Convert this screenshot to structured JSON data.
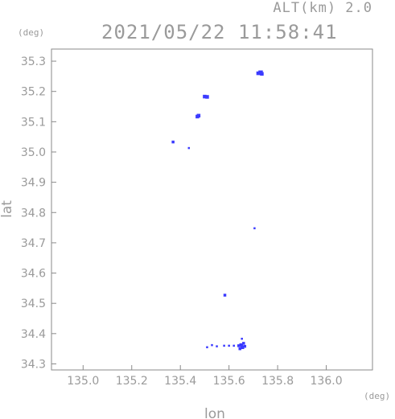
{
  "header": {
    "altitude_label": "ALT(km) 2.0",
    "timestamp": "2021/05/22 11:58:41"
  },
  "chart_data": {
    "type": "scatter",
    "title": "",
    "xlabel": "lon",
    "ylabel": "lat",
    "xunit": "(deg)",
    "yunit": "(deg)",
    "xlim": [
      134.87,
      136.19
    ],
    "ylim": [
      34.28,
      35.34
    ],
    "xticks": [
      "135.0",
      "135.2",
      "135.4",
      "135.6",
      "135.8",
      "136.0"
    ],
    "yticks": [
      "34.3",
      "34.4",
      "34.5",
      "34.6",
      "34.7",
      "34.8",
      "34.9",
      "35.0",
      "35.1",
      "35.2",
      "35.3"
    ],
    "grid": false,
    "point_color": "#3b3bff",
    "frame_color": "#8a8a8a",
    "series": [
      {
        "points": [
          {
            "x": 135.73,
            "y": 35.262,
            "size": 4
          },
          {
            "x": 135.72,
            "y": 35.26,
            "size": 3
          },
          {
            "x": 135.735,
            "y": 35.258,
            "size": 3
          },
          {
            "x": 135.5,
            "y": 35.183,
            "size": 3
          },
          {
            "x": 135.51,
            "y": 35.182,
            "size": 3
          },
          {
            "x": 135.475,
            "y": 35.12,
            "size": 3
          },
          {
            "x": 135.47,
            "y": 35.117,
            "size": 3
          },
          {
            "x": 135.37,
            "y": 35.033,
            "size": 2
          },
          {
            "x": 135.435,
            "y": 35.013,
            "size": 1
          },
          {
            "x": 135.705,
            "y": 34.748,
            "size": 1
          },
          {
            "x": 135.583,
            "y": 34.527,
            "size": 2
          },
          {
            "x": 135.65,
            "y": 34.362,
            "size": 3
          },
          {
            "x": 135.655,
            "y": 34.355,
            "size": 3
          },
          {
            "x": 135.645,
            "y": 34.35,
            "size": 2
          },
          {
            "x": 135.66,
            "y": 34.368,
            "size": 2
          },
          {
            "x": 135.653,
            "y": 34.383,
            "size": 1
          },
          {
            "x": 135.64,
            "y": 34.36,
            "size": 2
          },
          {
            "x": 135.665,
            "y": 34.358,
            "size": 2
          },
          {
            "x": 135.62,
            "y": 34.36,
            "size": 1
          },
          {
            "x": 135.6,
            "y": 34.36,
            "size": 1
          },
          {
            "x": 135.58,
            "y": 34.36,
            "size": 1
          },
          {
            "x": 135.55,
            "y": 34.358,
            "size": 1
          },
          {
            "x": 135.53,
            "y": 34.362,
            "size": 1
          },
          {
            "x": 135.51,
            "y": 34.355,
            "size": 1
          }
        ]
      }
    ]
  }
}
